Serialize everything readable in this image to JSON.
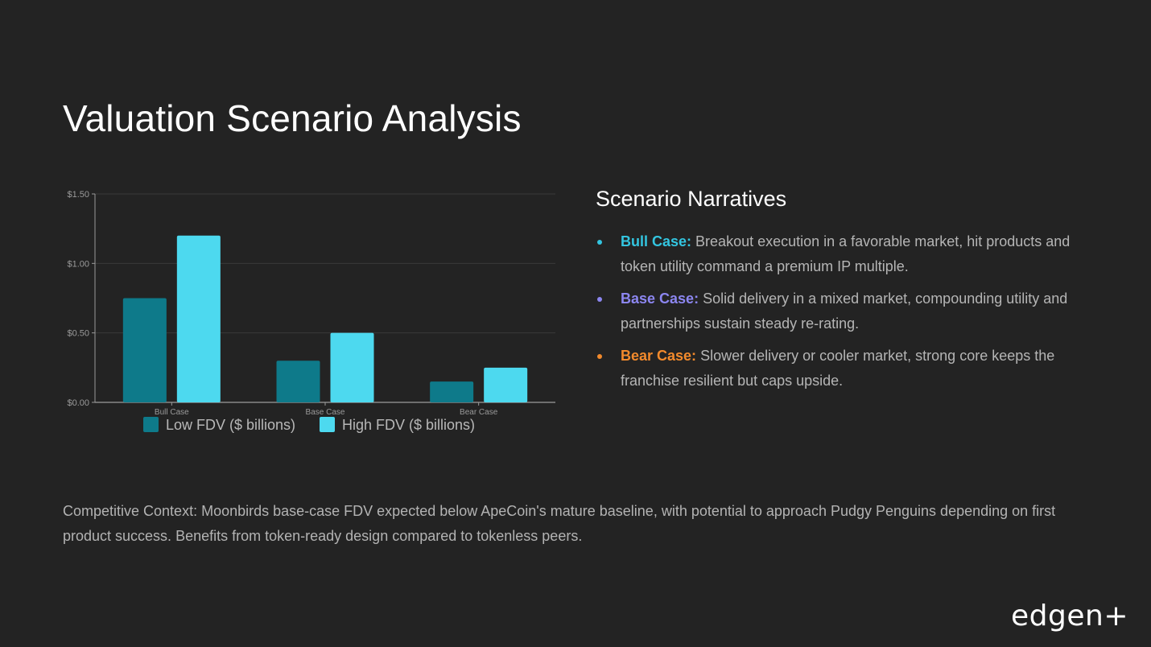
{
  "title": "Valuation Scenario Analysis",
  "chart_data": {
    "type": "bar",
    "categories": [
      "Bull Case",
      "Base Case",
      "Bear Case"
    ],
    "series": [
      {
        "name": "Low FDV ($ billions)",
        "values": [
          0.75,
          0.3,
          0.15
        ],
        "color": "#0e7a8a"
      },
      {
        "name": "High FDV ($ billions)",
        "values": [
          1.2,
          0.5,
          0.25
        ],
        "color": "#4dd9ef"
      }
    ],
    "ylim": [
      0,
      1.5
    ],
    "yticks": [
      "$0.00",
      "$0.50",
      "$1.00",
      "$1.50"
    ],
    "ytick_values": [
      0,
      0.5,
      1.0,
      1.5
    ],
    "grid": true,
    "legend": "bottom",
    "title": "",
    "xlabel": "",
    "ylabel": ""
  },
  "narratives": {
    "title": "Scenario Narratives",
    "items": [
      {
        "label": "Bull Case:",
        "text": "Breakout execution in a favorable market, hit products and token utility command a premium IP multiple.",
        "color": "#33c5e0"
      },
      {
        "label": "Base Case:",
        "text": "Solid delivery in a mixed market, compounding utility and partnerships sustain steady re-rating.",
        "color": "#8c86f0"
      },
      {
        "label": "Bear Case:",
        "text": "Slower delivery or cooler market, strong core keeps the franchise resilient but caps upside.",
        "color": "#f28a2c"
      }
    ]
  },
  "context": "Competitive Context: Moonbirds base-case FDV expected below ApeCoin's mature baseline, with potential to approach Pudgy Penguins depending on first product success. Benefits from token-ready design compared to tokenless peers.",
  "logo": "edgen+"
}
